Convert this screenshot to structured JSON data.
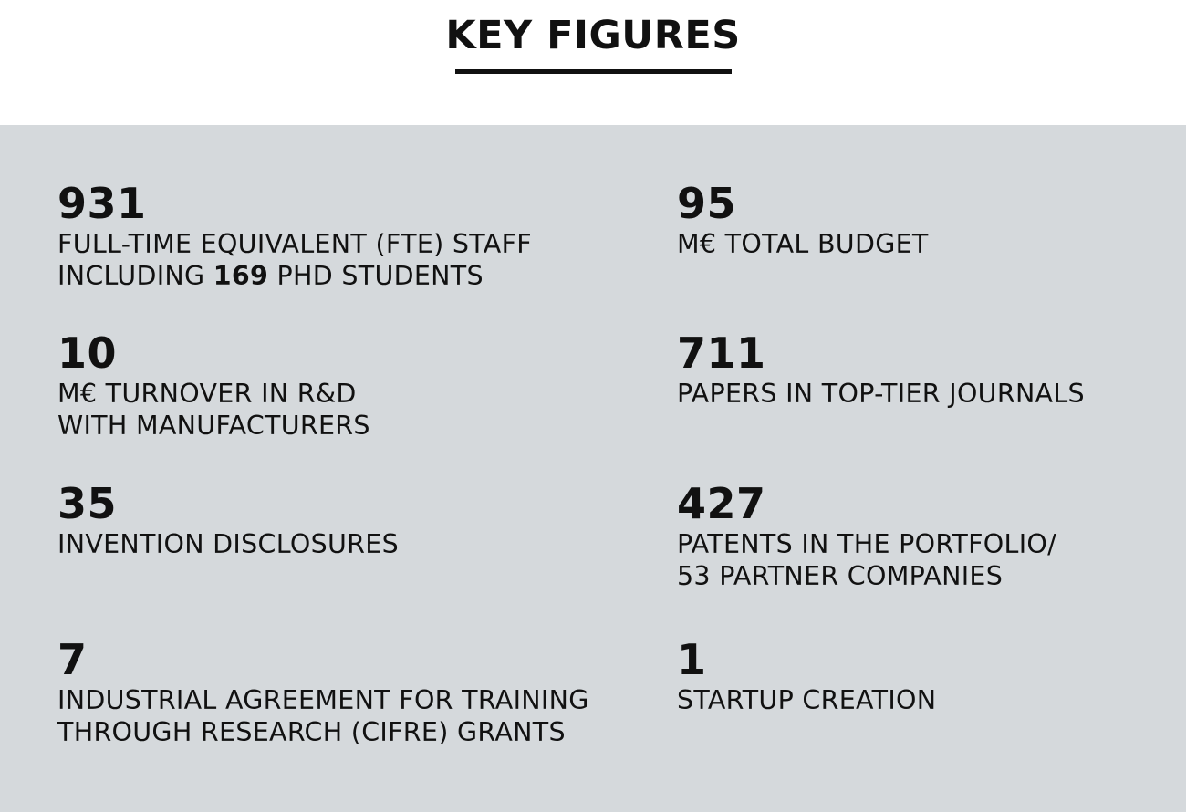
{
  "title": "KEY FIGURES",
  "figures": [
    {
      "value": "931",
      "line1": "FULL-TIME EQUIVALENT (FTE) STAFF",
      "line2_pre": "INCLUDING ",
      "line2_bold": "169",
      "line2_post": " PHD STUDENTS"
    },
    {
      "value": "95",
      "line1": "M€ TOTAL BUDGET"
    },
    {
      "value": "10",
      "line1": "M€ TURNOVER IN R&D",
      "line2": "WITH MANUFACTURERS"
    },
    {
      "value": "711",
      "line1": "PAPERS IN TOP-TIER JOURNALS"
    },
    {
      "value": "35",
      "line1": "INVENTION DISCLOSURES"
    },
    {
      "value": "427",
      "line1": "PATENTS IN THE PORTFOLIO/",
      "line2": "53 PARTNER COMPANIES"
    },
    {
      "value": "7",
      "line1": "INDUSTRIAL AGREEMENT FOR TRAINING",
      "line2": "THROUGH RESEARCH (CIFRE) GRANTS"
    },
    {
      "value": "1",
      "line1": "STARTUP CREATION"
    }
  ]
}
